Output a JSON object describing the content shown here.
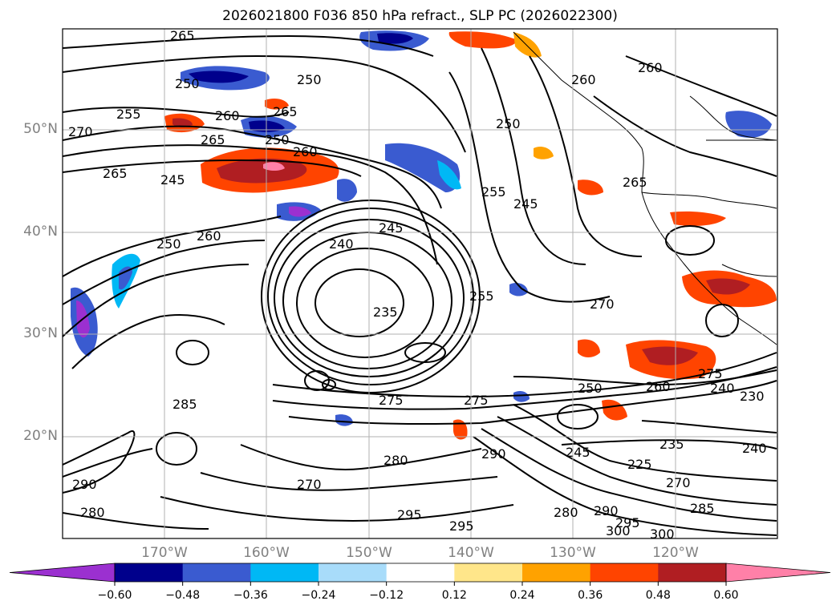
{
  "title": "2026021800 F036 850 hPa refract., SLP PC (2026022300)",
  "lat_labels": [
    "50°N",
    "40°N",
    "30°N",
    "20°N"
  ],
  "lon_labels": [
    "170°W",
    "160°W",
    "150°W",
    "140°W",
    "130°W",
    "120°W"
  ],
  "colorbar": {
    "ticks": [
      "−0.60",
      "−0.48",
      "−0.36",
      "−0.24",
      "−0.12",
      "0.12",
      "0.24",
      "0.36",
      "0.48",
      "0.60"
    ],
    "colors": [
      "#9b30d0",
      "#00008c",
      "#3a5bd0",
      "#00b8f5",
      "#a8dcfa",
      "#ffffff",
      "#ffe68a",
      "#ffa200",
      "#ff4400",
      "#b01e22",
      "#ff80a8"
    ]
  },
  "contour_labels": [
    {
      "text": "265"
    },
    {
      "text": "250"
    },
    {
      "text": "255"
    },
    {
      "text": "270"
    },
    {
      "text": "265"
    },
    {
      "text": "260"
    },
    {
      "text": "250"
    },
    {
      "text": "260"
    },
    {
      "text": "245"
    },
    {
      "text": "265"
    },
    {
      "text": "250"
    },
    {
      "text": "265"
    },
    {
      "text": "240"
    },
    {
      "text": "245"
    },
    {
      "text": "235"
    },
    {
      "text": "255"
    },
    {
      "text": "250"
    },
    {
      "text": "245"
    },
    {
      "text": "255"
    },
    {
      "text": "250"
    },
    {
      "text": "260"
    },
    {
      "text": "260"
    },
    {
      "text": "265"
    },
    {
      "text": "270"
    },
    {
      "text": "260"
    },
    {
      "text": "275"
    },
    {
      "text": "285"
    },
    {
      "text": "275"
    },
    {
      "text": "250"
    },
    {
      "text": "260"
    },
    {
      "text": "240"
    },
    {
      "text": "230"
    },
    {
      "text": "235"
    },
    {
      "text": "245"
    },
    {
      "text": "290"
    },
    {
      "text": "280"
    },
    {
      "text": "270"
    },
    {
      "text": "295"
    },
    {
      "text": "295"
    },
    {
      "text": "280"
    },
    {
      "text": "290"
    },
    {
      "text": "295"
    },
    {
      "text": "300"
    },
    {
      "text": "285"
    },
    {
      "text": "270"
    },
    {
      "text": "225"
    },
    {
      "text": "240"
    },
    {
      "text": "300"
    },
    {
      "text": "290"
    },
    {
      "text": "280"
    },
    {
      "text": "275"
    }
  ]
}
